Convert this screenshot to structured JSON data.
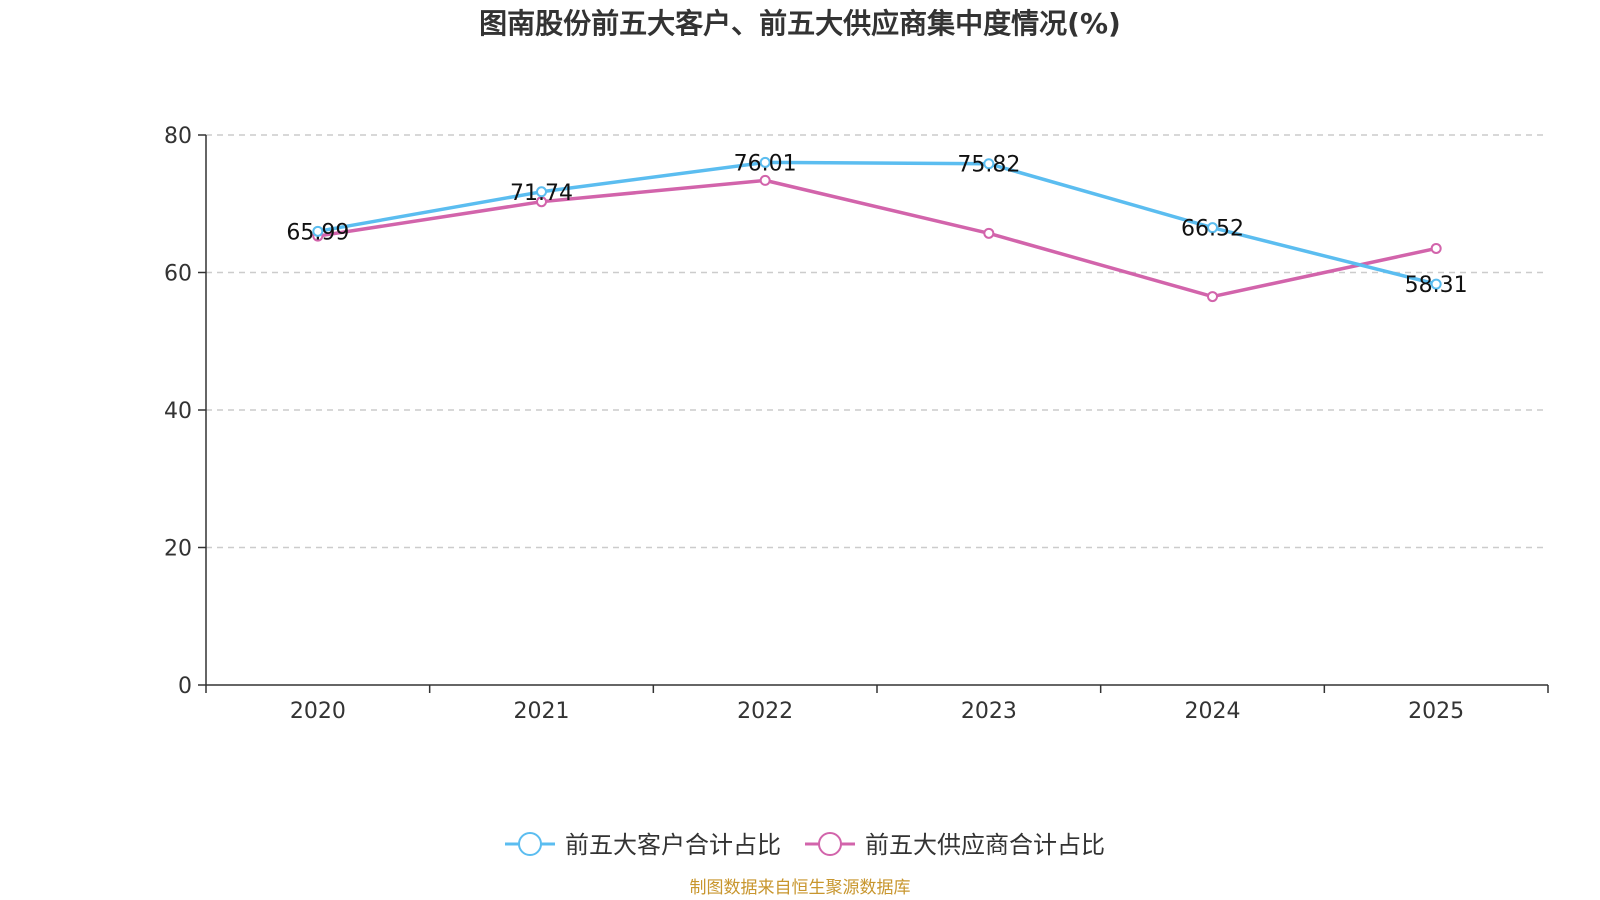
{
  "chart_data": {
    "type": "line",
    "title": "图南股份前五大客户、前五大供应商集中度情况(%)",
    "categories": [
      "2020",
      "2021",
      "2022",
      "2023",
      "2024",
      "2025"
    ],
    "ylim": [
      0,
      80
    ],
    "yticks": [
      0,
      20,
      40,
      60,
      80
    ],
    "grid": true,
    "legend_position": "bottom-center",
    "series": [
      {
        "name": "前五大客户合计占比",
        "color": "#5bbdf0",
        "values": [
          65.99,
          71.74,
          76.01,
          75.82,
          66.52,
          58.31
        ],
        "labels": [
          "65.99",
          "71.74",
          "76.01",
          "75.82",
          "66.52",
          "58.31"
        ]
      },
      {
        "name": "前五大供应商合计占比",
        "color": "#d264ab",
        "values": [
          65.3,
          70.3,
          73.4,
          65.7,
          56.5,
          63.5
        ]
      }
    ],
    "source_note": "制图数据来自恒生聚源数据库",
    "source_color": "#c8962e"
  }
}
